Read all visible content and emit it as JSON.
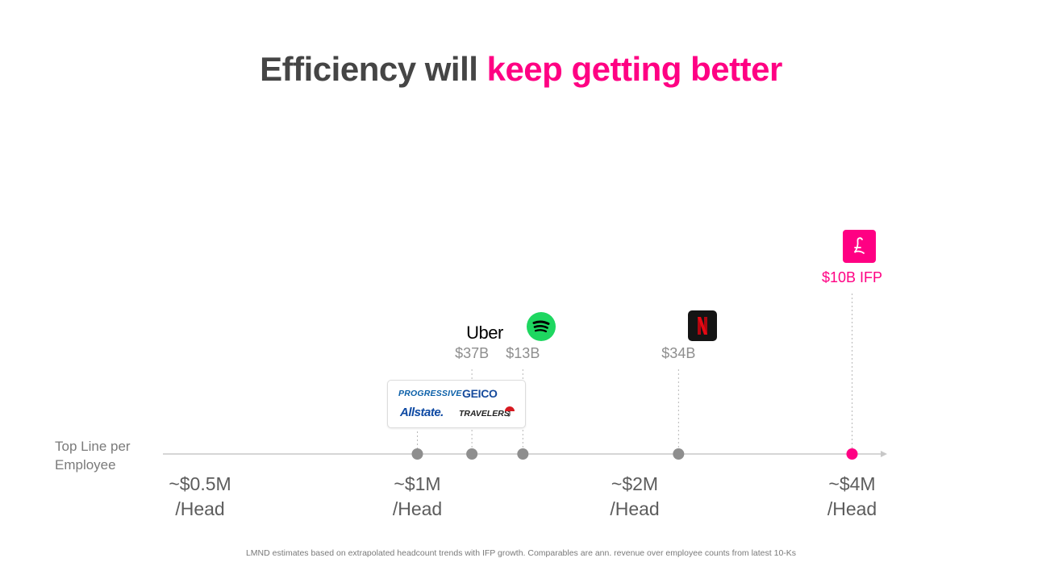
{
  "title": {
    "main": "Efficiency will ",
    "accent": "keep getting better"
  },
  "colors": {
    "accent": "#ff0083",
    "title": "#454545",
    "marker": "#8e8e8e",
    "axis": "#c8c8c8"
  },
  "axis_label_line1": "Top Line per",
  "axis_label_line2": "Employee",
  "footnote": "LMND estimates based on extrapolated headcount trends with IFP growth. Comparables are ann. revenue over employee counts from latest 10-Ks",
  "chart_data": {
    "type": "scatter",
    "x_scale": "log",
    "x_ticks": [
      {
        "value": 0.5,
        "label_line1": "~$0.5M",
        "label_line2": "/Head"
      },
      {
        "value": 1,
        "label_line1": "~$1M",
        "label_line2": "/Head"
      },
      {
        "value": 2,
        "label_line1": "~$2M",
        "label_line2": "/Head"
      },
      {
        "value": 4,
        "label_line1": "~$4M",
        "label_line2": "/Head"
      }
    ],
    "points": [
      {
        "name": "Progressive / GEICO / Allstate / Travelers",
        "logo": "insurers-logos",
        "x": 1.0,
        "label": ""
      },
      {
        "name": "Uber",
        "logo": "Uber",
        "x": 1.19,
        "label": "$37B"
      },
      {
        "name": "Spotify",
        "logo": "spotify-icon",
        "x": 1.4,
        "label": "$13B"
      },
      {
        "name": "Netflix",
        "logo": "netflix-icon",
        "x": 2.3,
        "label": "$34B"
      },
      {
        "name": "Lemonade",
        "logo": "lemonade-icon",
        "x": 4.0,
        "label": "$10B IFP",
        "highlight": true
      }
    ]
  },
  "logos": {
    "uber": "Uber",
    "progressive": "PROGRESSIVE",
    "geico": "GEICO",
    "allstate": "Allstate.",
    "travelers": "TRAVELERS"
  }
}
